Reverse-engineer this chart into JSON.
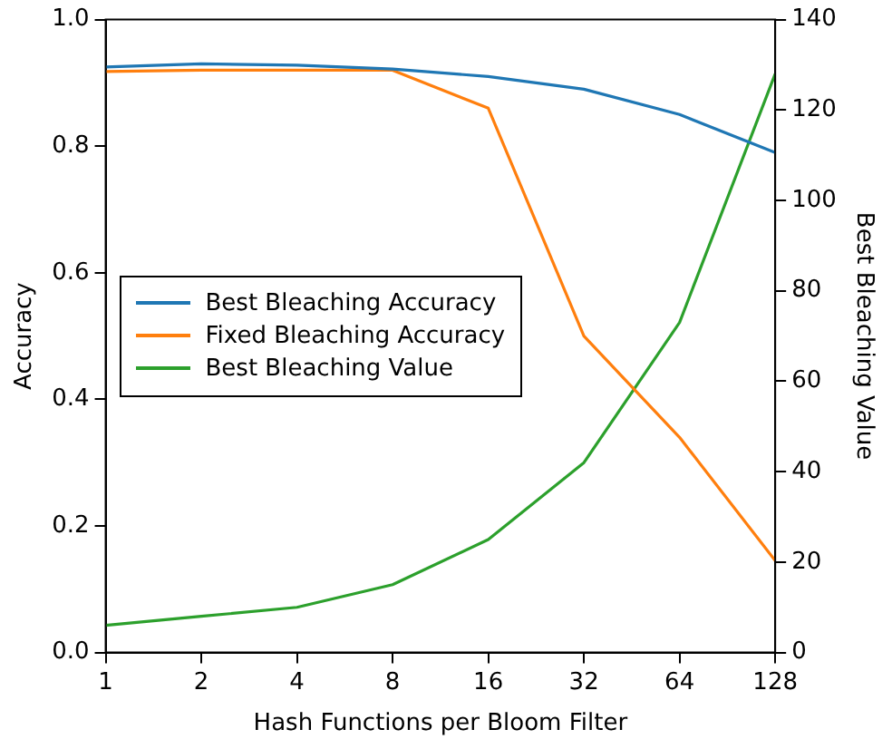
{
  "chart_data": {
    "type": "line",
    "xlabel": "Hash Functions per Bloom Filter",
    "ylabel": "Accuracy",
    "y2label": "Best Bleaching Value",
    "x": [
      1,
      2,
      4,
      8,
      16,
      32,
      64,
      128
    ],
    "log": "x",
    "xlim": [
      1,
      128
    ],
    "xticks": [
      1,
      2,
      4,
      8,
      16,
      32,
      64,
      128
    ],
    "ylim": [
      0,
      1
    ],
    "yticks": [
      {
        "value": 0,
        "label": "0.0"
      },
      {
        "value": 0.2,
        "label": "0.2"
      },
      {
        "value": 0.4,
        "label": "0.4"
      },
      {
        "value": 0.6,
        "label": "0.6"
      },
      {
        "value": 0.8,
        "label": "0.8"
      },
      {
        "value": 1,
        "label": "1.0"
      }
    ],
    "y2lim": [
      0,
      140
    ],
    "y2ticks": [
      0,
      20,
      40,
      60,
      80,
      100,
      120,
      140
    ],
    "grid": false,
    "legend": "center left",
    "marker": "none",
    "line_style": "solid",
    "series": [
      {
        "name": "Best Bleaching Accuracy",
        "color": "#1f77b4",
        "values": [
          0.925,
          0.93,
          0.928,
          0.922,
          0.91,
          0.89,
          0.85,
          0.79
        ]
      },
      {
        "name": "Fixed Bleaching Accuracy",
        "color": "#ff7f0e",
        "values": [
          0.918,
          0.92,
          0.92,
          0.92,
          0.86,
          0.5,
          0.34,
          0.145
        ]
      },
      {
        "name": "Best Bleaching Value",
        "color": "#2ca02c",
        "axis": "y2",
        "values": [
          6,
          8,
          10,
          15,
          25,
          42,
          73,
          128
        ]
      }
    ]
  }
}
